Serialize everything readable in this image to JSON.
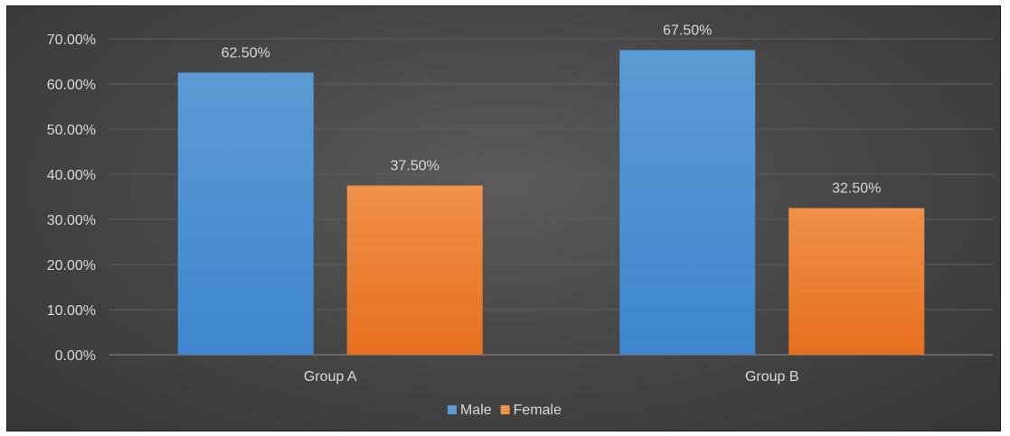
{
  "chart_data": {
    "type": "bar",
    "categories": [
      "Group A",
      "Group B"
    ],
    "series": [
      {
        "name": "Male",
        "values": [
          62.5,
          67.5
        ],
        "color": "#5b9bd5",
        "color_dark": "#3f86cf"
      },
      {
        "name": "Female",
        "values": [
          37.5,
          32.5
        ],
        "color": "#f0904a",
        "color_dark": "#e66f1d"
      }
    ],
    "data_labels": [
      [
        "62.50%",
        "67.50%"
      ],
      [
        "37.50%",
        "32.50%"
      ]
    ],
    "ylim": [
      0,
      70
    ],
    "y_ticks": [
      0,
      10,
      20,
      30,
      40,
      50,
      60,
      70
    ],
    "y_tick_labels": [
      "0.00%",
      "10.00%",
      "20.00%",
      "30.00%",
      "40.00%",
      "50.00%",
      "60.00%",
      "70.00%"
    ],
    "grid": true,
    "legend_position": "bottom",
    "background": "#474747",
    "text_color": "#d9d9d9"
  }
}
